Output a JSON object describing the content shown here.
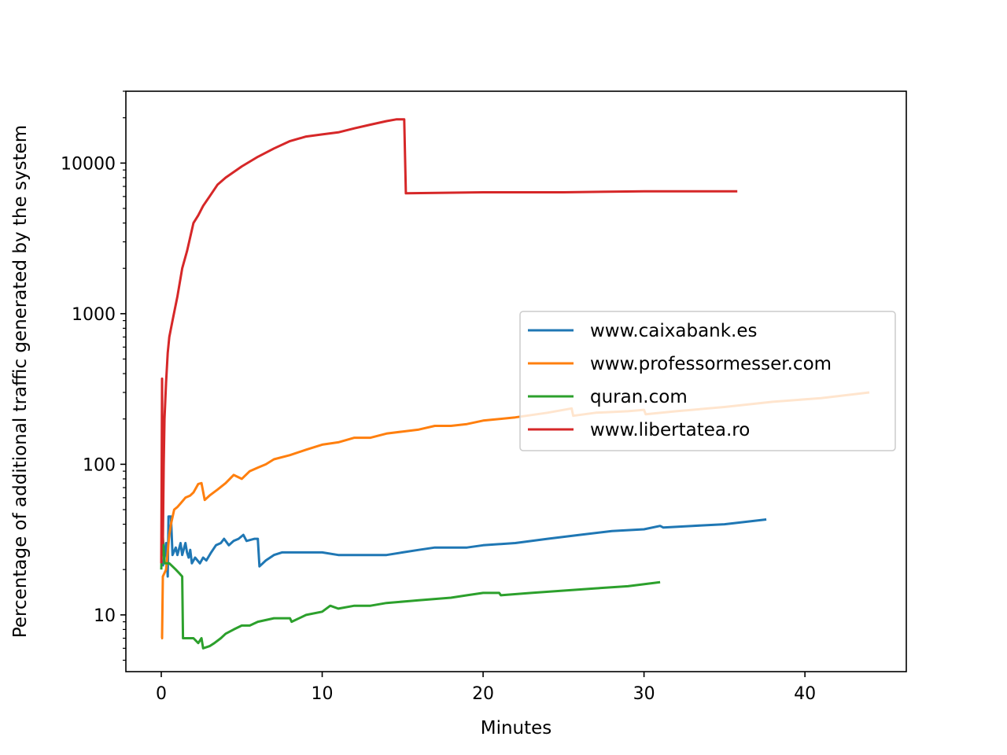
{
  "chart_data": {
    "type": "line",
    "title": "",
    "xlabel": "Minutes",
    "ylabel": "Percentage of additional traffic generated by the system",
    "x_scale": "linear",
    "y_scale": "log",
    "xlim": [
      -2.2,
      46.3
    ],
    "ylim": [
      4.2,
      30000
    ],
    "x_ticks": [
      0,
      10,
      20,
      30,
      40
    ],
    "x_tick_labels": [
      "0",
      "10",
      "20",
      "30",
      "40"
    ],
    "y_ticks": [
      10,
      100,
      1000,
      10000
    ],
    "y_tick_labels": [
      "10",
      "100",
      "1000",
      "10000"
    ],
    "grid": false,
    "legend_location": "center-right",
    "series": [
      {
        "name": "www.caixabank.es",
        "color": "#1f77b4",
        "points": [
          [
            0.1,
            21
          ],
          [
            0.2,
            25
          ],
          [
            0.3,
            30
          ],
          [
            0.4,
            18
          ],
          [
            0.45,
            45
          ],
          [
            0.6,
            45
          ],
          [
            0.7,
            25
          ],
          [
            0.9,
            28
          ],
          [
            1.0,
            25
          ],
          [
            1.2,
            30
          ],
          [
            1.3,
            25
          ],
          [
            1.5,
            30
          ],
          [
            1.6,
            26
          ],
          [
            1.7,
            24
          ],
          [
            1.8,
            27
          ],
          [
            1.9,
            22
          ],
          [
            2.1,
            24
          ],
          [
            2.4,
            22
          ],
          [
            2.6,
            24
          ],
          [
            2.8,
            23
          ],
          [
            3.1,
            26
          ],
          [
            3.4,
            29
          ],
          [
            3.7,
            30
          ],
          [
            3.9,
            32
          ],
          [
            4.2,
            29
          ],
          [
            4.5,
            31
          ],
          [
            4.8,
            32
          ],
          [
            5.1,
            34
          ],
          [
            5.3,
            31
          ],
          [
            5.8,
            32
          ],
          [
            6.0,
            32
          ],
          [
            6.1,
            21
          ],
          [
            6.5,
            23
          ],
          [
            7.0,
            25
          ],
          [
            7.5,
            26
          ],
          [
            8.0,
            26
          ],
          [
            9.0,
            26
          ],
          [
            10.0,
            26
          ],
          [
            11.0,
            25
          ],
          [
            12.0,
            25
          ],
          [
            13.0,
            25
          ],
          [
            14.0,
            25
          ],
          [
            15.0,
            26
          ],
          [
            16.0,
            27
          ],
          [
            17.0,
            28
          ],
          [
            18.0,
            28
          ],
          [
            19.0,
            28
          ],
          [
            20.0,
            29
          ],
          [
            22.0,
            30
          ],
          [
            24.0,
            32
          ],
          [
            26.0,
            34
          ],
          [
            28.0,
            36
          ],
          [
            30.0,
            37
          ],
          [
            31.0,
            39
          ],
          [
            31.2,
            38
          ],
          [
            33.0,
            39
          ],
          [
            35.0,
            40
          ],
          [
            37.6,
            43
          ]
        ]
      },
      {
        "name": "www.professormesser.com",
        "color": "#ff7f0e",
        "points": [
          [
            0.0,
            7
          ],
          [
            0.05,
            7
          ],
          [
            0.1,
            18
          ],
          [
            0.3,
            20
          ],
          [
            0.5,
            34
          ],
          [
            0.6,
            40
          ],
          [
            0.8,
            50
          ],
          [
            1.0,
            52
          ],
          [
            1.2,
            55
          ],
          [
            1.5,
            60
          ],
          [
            1.8,
            62
          ],
          [
            2.0,
            65
          ],
          [
            2.3,
            74
          ],
          [
            2.5,
            75
          ],
          [
            2.7,
            58
          ],
          [
            3.0,
            62
          ],
          [
            3.5,
            68
          ],
          [
            4.0,
            75
          ],
          [
            4.5,
            85
          ],
          [
            5.0,
            80
          ],
          [
            5.5,
            90
          ],
          [
            6.0,
            95
          ],
          [
            6.5,
            100
          ],
          [
            7.0,
            108
          ],
          [
            8.0,
            115
          ],
          [
            9.0,
            125
          ],
          [
            10.0,
            135
          ],
          [
            11.0,
            140
          ],
          [
            12.0,
            150
          ],
          [
            13.0,
            150
          ],
          [
            14.0,
            160
          ],
          [
            15.0,
            165
          ],
          [
            16.0,
            170
          ],
          [
            17.0,
            180
          ],
          [
            18.0,
            180
          ],
          [
            19.0,
            185
          ],
          [
            20.0,
            195
          ],
          [
            22.0,
            205
          ],
          [
            24.0,
            220
          ],
          [
            25.5,
            235
          ],
          [
            25.6,
            210
          ],
          [
            27.0,
            220
          ],
          [
            29.0,
            225
          ],
          [
            30.0,
            230
          ],
          [
            30.1,
            215
          ],
          [
            32.0,
            225
          ],
          [
            35.0,
            240
          ],
          [
            38.0,
            260
          ],
          [
            41.0,
            275
          ],
          [
            44.0,
            300
          ]
        ]
      },
      {
        "name": "quran.com",
        "color": "#2ca02c",
        "points": [
          [
            0.0,
            20
          ],
          [
            0.05,
            32
          ],
          [
            0.1,
            33
          ],
          [
            0.2,
            22
          ],
          [
            0.3,
            22
          ],
          [
            0.5,
            22
          ],
          [
            0.7,
            21
          ],
          [
            0.9,
            20
          ],
          [
            1.1,
            19
          ],
          [
            1.3,
            18
          ],
          [
            1.35,
            7
          ],
          [
            1.6,
            7
          ],
          [
            2.0,
            7
          ],
          [
            2.3,
            6.5
          ],
          [
            2.5,
            7
          ],
          [
            2.6,
            6
          ],
          [
            3.0,
            6.2
          ],
          [
            3.3,
            6.5
          ],
          [
            3.7,
            7
          ],
          [
            4.0,
            7.5
          ],
          [
            4.5,
            8
          ],
          [
            5.0,
            8.5
          ],
          [
            5.5,
            8.5
          ],
          [
            6.0,
            9
          ],
          [
            7.0,
            9.5
          ],
          [
            8.0,
            9.5
          ],
          [
            8.1,
            9
          ],
          [
            9.0,
            10
          ],
          [
            10.0,
            10.5
          ],
          [
            10.5,
            11.5
          ],
          [
            11.0,
            11
          ],
          [
            12.0,
            11.5
          ],
          [
            13.0,
            11.5
          ],
          [
            14.0,
            12
          ],
          [
            16.0,
            12.5
          ],
          [
            18.0,
            13
          ],
          [
            19.0,
            13.5
          ],
          [
            20.0,
            14
          ],
          [
            21.0,
            14
          ],
          [
            21.1,
            13.5
          ],
          [
            23.0,
            14
          ],
          [
            25.0,
            14.5
          ],
          [
            27.0,
            15
          ],
          [
            29.0,
            15.5
          ],
          [
            31.0,
            16.5
          ]
        ]
      },
      {
        "name": "www.libertatea.ro",
        "color": "#d62728",
        "points": [
          [
            0.0,
            22
          ],
          [
            0.05,
            370
          ],
          [
            0.1,
            30
          ],
          [
            0.15,
            100
          ],
          [
            0.2,
            200
          ],
          [
            0.3,
            350
          ],
          [
            0.4,
            550
          ],
          [
            0.5,
            700
          ],
          [
            0.7,
            900
          ],
          [
            1.0,
            1300
          ],
          [
            1.3,
            2000
          ],
          [
            1.6,
            2600
          ],
          [
            2.0,
            4000
          ],
          [
            2.3,
            4500
          ],
          [
            2.6,
            5200
          ],
          [
            3.0,
            6000
          ],
          [
            3.5,
            7200
          ],
          [
            4.0,
            8000
          ],
          [
            5.0,
            9500
          ],
          [
            6.0,
            11000
          ],
          [
            7.0,
            12500
          ],
          [
            8.0,
            14000
          ],
          [
            9.0,
            15000
          ],
          [
            10.0,
            15500
          ],
          [
            11.0,
            16000
          ],
          [
            12.0,
            17000
          ],
          [
            13.0,
            18000
          ],
          [
            14.0,
            19000
          ],
          [
            14.6,
            19500
          ],
          [
            15.1,
            19500
          ],
          [
            15.2,
            6300
          ],
          [
            20.0,
            6400
          ],
          [
            25.0,
            6400
          ],
          [
            30.0,
            6500
          ],
          [
            35.8,
            6500
          ]
        ]
      }
    ]
  }
}
